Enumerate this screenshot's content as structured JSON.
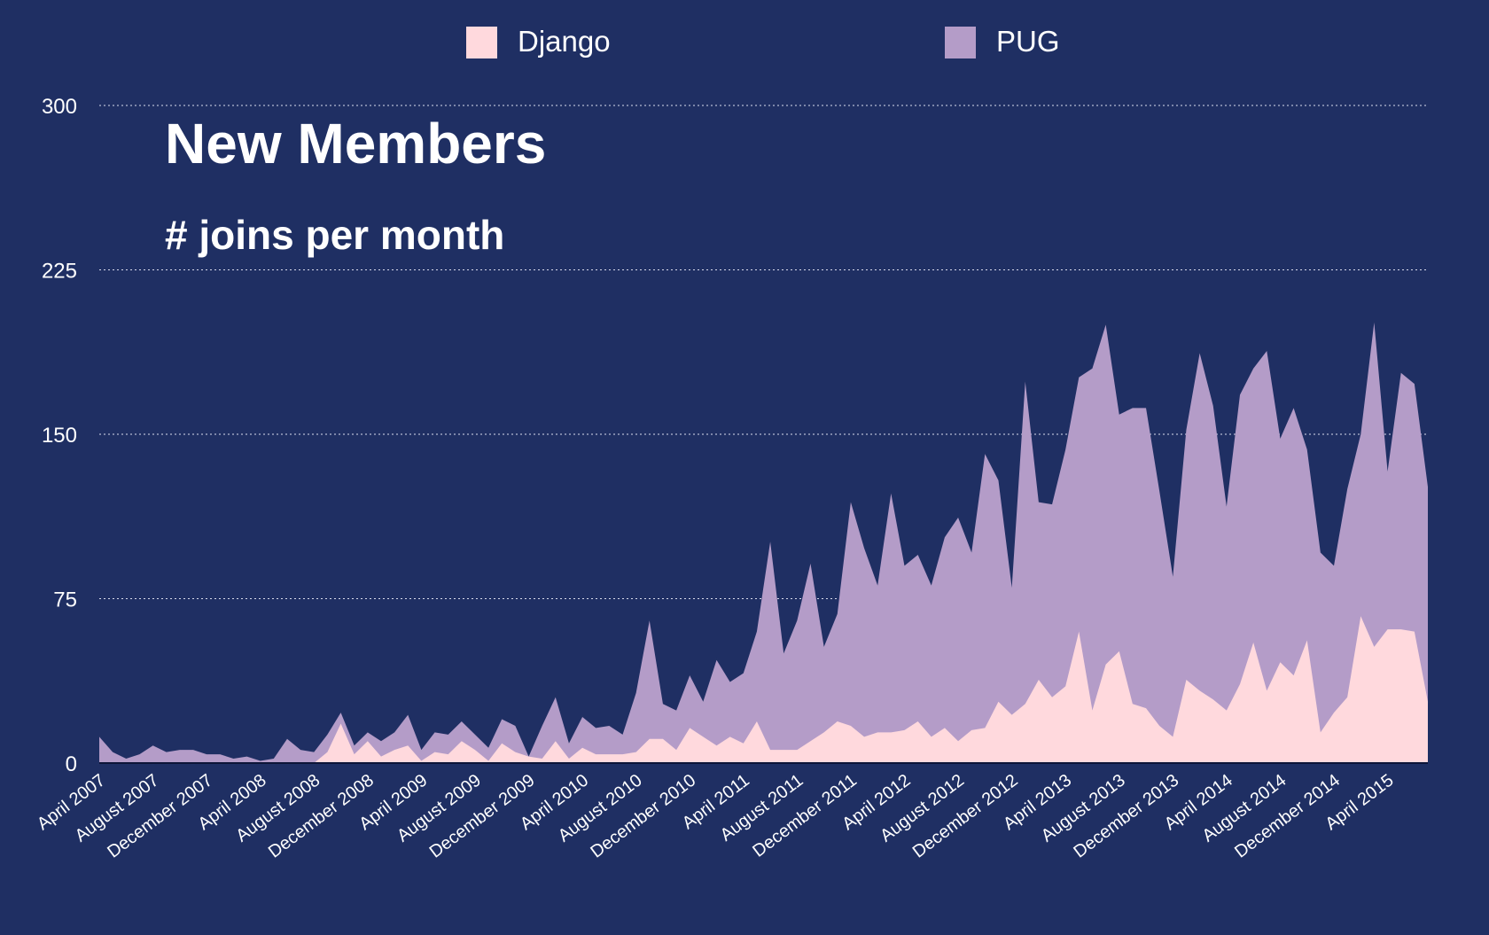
{
  "chart_data": {
    "type": "area",
    "stacking": "overlapping",
    "title": "New Members",
    "subtitle": "# joins per month",
    "xlabel": "",
    "ylabel": "",
    "ylim": [
      0,
      300
    ],
    "y_ticks": [
      0,
      75,
      150,
      225,
      300
    ],
    "grid": "horizontal dotted",
    "legend_position": "top-center",
    "x_tick_labels": [
      "April 2007",
      "August 2007",
      "December 2007",
      "April 2008",
      "August 2008",
      "December 2008",
      "April 2009",
      "August 2009",
      "December 2009",
      "April 2010",
      "August 2010",
      "December 2010",
      "April 2011",
      "August 2011",
      "December 2011",
      "April 2012",
      "August 2012",
      "December 2012",
      "April 2013",
      "August 2013",
      "December 2013",
      "April 2014",
      "August 2014",
      "December 2014",
      "April 2015"
    ],
    "series": [
      {
        "name": "PUG",
        "color": "#b49cc8",
        "values": [
          12,
          5,
          2,
          4,
          8,
          5,
          6,
          6,
          4,
          4,
          2,
          3,
          1,
          2,
          11,
          6,
          5,
          13,
          23,
          8,
          14,
          10,
          14,
          22,
          6,
          14,
          13,
          19,
          13,
          7,
          20,
          17,
          3,
          17,
          30,
          9,
          21,
          16,
          17,
          13,
          32,
          65,
          27,
          24,
          40,
          28,
          47,
          37,
          41,
          60,
          101,
          50,
          65,
          91,
          53,
          68,
          119,
          98,
          81,
          123,
          90,
          95,
          81,
          103,
          112,
          96,
          141,
          129,
          80,
          174,
          119,
          118,
          143,
          176,
          180,
          200,
          159,
          162,
          162,
          124,
          85,
          152,
          187,
          163,
          117,
          168,
          180,
          188,
          148,
          162,
          143,
          96,
          90,
          125,
          150,
          201,
          133,
          178,
          173,
          126
        ]
      },
      {
        "name": "Django",
        "color": "#ffd9dd",
        "values": [
          0,
          0,
          0,
          0,
          0,
          0,
          0,
          0,
          0,
          0,
          0,
          0,
          0,
          0,
          0,
          0,
          0,
          5,
          18,
          4,
          10,
          3,
          6,
          8,
          1,
          5,
          4,
          10,
          6,
          1,
          9,
          5,
          3,
          2,
          10,
          2,
          7,
          4,
          4,
          4,
          5,
          11,
          11,
          6,
          16,
          12,
          8,
          12,
          9,
          19,
          6,
          6,
          6,
          10,
          14,
          19,
          17,
          12,
          14,
          14,
          15,
          19,
          12,
          16,
          10,
          15,
          16,
          28,
          22,
          27,
          38,
          30,
          35,
          60,
          24,
          45,
          51,
          27,
          25,
          17,
          12,
          38,
          33,
          29,
          24,
          36,
          55,
          33,
          46,
          40,
          56,
          14,
          23,
          30,
          67,
          53,
          61,
          61,
          60,
          28
        ]
      }
    ]
  }
}
